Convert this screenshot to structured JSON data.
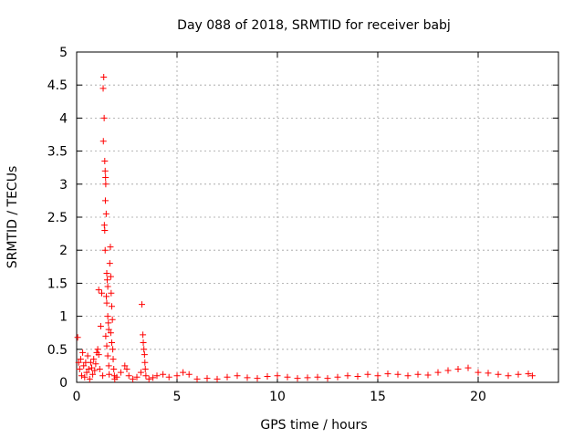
{
  "chart_data": {
    "type": "scatter",
    "title": "Day 088 of 2018, SRMTID for receiver babj",
    "xlabel": "GPS time / hours",
    "ylabel": "SRMTID / TECUs",
    "xlim": [
      0,
      24
    ],
    "ylim": [
      0,
      5
    ],
    "xticks": [
      0,
      5,
      10,
      15,
      20
    ],
    "yticks": [
      0,
      0.5,
      1,
      1.5,
      2,
      2.5,
      3,
      3.5,
      4,
      4.5,
      5
    ],
    "xtick_labels": [
      "0",
      "5",
      "10",
      "15",
      "20"
    ],
    "ytick_labels": [
      "0",
      "0.5",
      "1",
      "1.5",
      "2",
      "2.5",
      "3",
      "3.5",
      "4",
      "4.5",
      "5"
    ],
    "grid": true,
    "marker": "+",
    "color": "#ff0000",
    "series": [
      {
        "name": "SRMTID",
        "points": [
          [
            0.05,
            0.68
          ],
          [
            0.1,
            0.3
          ],
          [
            0.15,
            0.2
          ],
          [
            0.2,
            0.35
          ],
          [
            0.25,
            0.1
          ],
          [
            0.3,
            0.45
          ],
          [
            0.35,
            0.25
          ],
          [
            0.4,
            0.08
          ],
          [
            0.45,
            0.3
          ],
          [
            0.5,
            0.15
          ],
          [
            0.55,
            0.4
          ],
          [
            0.6,
            0.2
          ],
          [
            0.65,
            0.05
          ],
          [
            0.7,
            0.3
          ],
          [
            0.75,
            0.22
          ],
          [
            0.8,
            0.12
          ],
          [
            0.85,
            0.35
          ],
          [
            0.9,
            0.18
          ],
          [
            0.95,
            0.28
          ],
          [
            1.0,
            0.45
          ],
          [
            1.05,
            0.5
          ],
          [
            1.1,
            0.42
          ],
          [
            1.15,
            0.2
          ],
          [
            1.2,
            0.85
          ],
          [
            1.1,
            1.4
          ],
          [
            1.25,
            1.35
          ],
          [
            1.3,
            0.1
          ],
          [
            1.32,
            4.45
          ],
          [
            1.35,
            4.62
          ],
          [
            1.37,
            4.0
          ],
          [
            1.33,
            3.65
          ],
          [
            1.4,
            3.35
          ],
          [
            1.42,
            3.2
          ],
          [
            1.44,
            3.1
          ],
          [
            1.45,
            3.0
          ],
          [
            1.43,
            2.75
          ],
          [
            1.47,
            2.55
          ],
          [
            1.38,
            2.38
          ],
          [
            1.4,
            2.3
          ],
          [
            1.42,
            2.0
          ],
          [
            1.5,
            1.65
          ],
          [
            1.52,
            1.55
          ],
          [
            1.55,
            1.45
          ],
          [
            1.48,
            1.3
          ],
          [
            1.5,
            1.2
          ],
          [
            1.55,
            1.0
          ],
          [
            1.58,
            0.9
          ],
          [
            1.6,
            0.8
          ],
          [
            1.45,
            0.7
          ],
          [
            1.5,
            0.55
          ],
          [
            1.55,
            0.4
          ],
          [
            1.6,
            0.25
          ],
          [
            1.62,
            0.12
          ],
          [
            1.65,
            1.8
          ],
          [
            1.68,
            2.05
          ],
          [
            1.7,
            1.6
          ],
          [
            1.72,
            1.35
          ],
          [
            1.75,
            1.15
          ],
          [
            1.78,
            0.95
          ],
          [
            1.7,
            0.75
          ],
          [
            1.75,
            0.6
          ],
          [
            1.8,
            0.5
          ],
          [
            1.82,
            0.35
          ],
          [
            1.85,
            0.2
          ],
          [
            1.88,
            0.1
          ],
          [
            1.9,
            0.05
          ],
          [
            2.0,
            0.08
          ],
          [
            2.2,
            0.15
          ],
          [
            2.4,
            0.25
          ],
          [
            2.5,
            0.2
          ],
          [
            2.6,
            0.1
          ],
          [
            2.8,
            0.05
          ],
          [
            3.0,
            0.08
          ],
          [
            3.2,
            0.15
          ],
          [
            3.25,
            1.18
          ],
          [
            3.3,
            0.72
          ],
          [
            3.32,
            0.6
          ],
          [
            3.35,
            0.5
          ],
          [
            3.38,
            0.42
          ],
          [
            3.4,
            0.3
          ],
          [
            3.42,
            0.2
          ],
          [
            3.45,
            0.1
          ],
          [
            3.6,
            0.05
          ],
          [
            3.8,
            0.07
          ],
          [
            4.0,
            0.1
          ],
          [
            4.3,
            0.12
          ],
          [
            4.6,
            0.08
          ],
          [
            5.0,
            0.1
          ],
          [
            5.3,
            0.15
          ],
          [
            5.6,
            0.12
          ],
          [
            6.0,
            0.05
          ],
          [
            6.5,
            0.06
          ],
          [
            7.0,
            0.05
          ],
          [
            7.5,
            0.08
          ],
          [
            8.0,
            0.1
          ],
          [
            8.5,
            0.07
          ],
          [
            9.0,
            0.06
          ],
          [
            9.5,
            0.09
          ],
          [
            10.0,
            0.1
          ],
          [
            10.5,
            0.08
          ],
          [
            11.0,
            0.06
          ],
          [
            11.5,
            0.07
          ],
          [
            12.0,
            0.08
          ],
          [
            12.5,
            0.06
          ],
          [
            13.0,
            0.08
          ],
          [
            13.5,
            0.1
          ],
          [
            14.0,
            0.09
          ],
          [
            14.5,
            0.12
          ],
          [
            15.0,
            0.1
          ],
          [
            15.5,
            0.13
          ],
          [
            16.0,
            0.12
          ],
          [
            16.5,
            0.1
          ],
          [
            17.0,
            0.12
          ],
          [
            17.5,
            0.11
          ],
          [
            18.0,
            0.15
          ],
          [
            18.5,
            0.18
          ],
          [
            19.0,
            0.2
          ],
          [
            19.5,
            0.22
          ],
          [
            20.0,
            0.15
          ],
          [
            20.5,
            0.14
          ],
          [
            21.0,
            0.12
          ],
          [
            21.5,
            0.1
          ],
          [
            22.0,
            0.12
          ],
          [
            22.5,
            0.13
          ],
          [
            22.7,
            0.1
          ]
        ]
      }
    ]
  }
}
